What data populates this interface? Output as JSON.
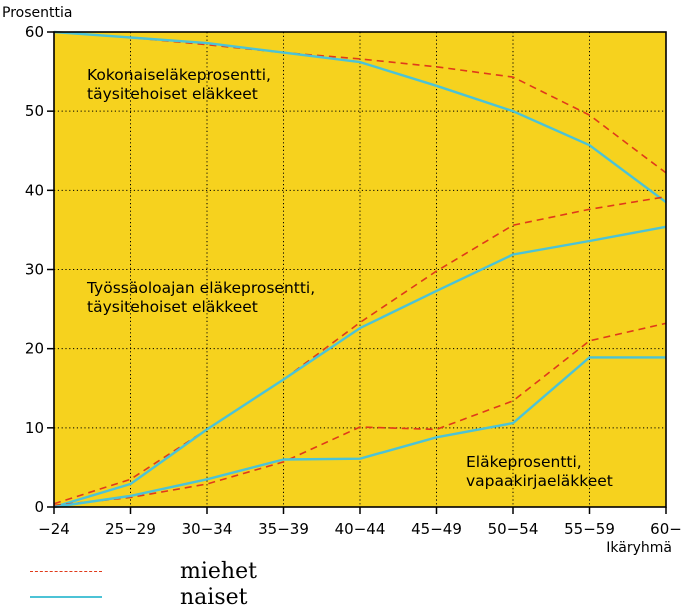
{
  "chart_data": {
    "type": "line",
    "ylabel": "Prosenttia",
    "xlabel": "Ikäryhmä",
    "ylim": [
      0,
      60
    ],
    "yticks": [
      "0",
      "10",
      "20",
      "30",
      "40",
      "50",
      "60"
    ],
    "categories": [
      "-24",
      "25-29",
      "30-34",
      "35-39",
      "40-44",
      "45-49",
      "50-54",
      "55-59",
      "60-"
    ],
    "x_tick_labels": [
      "−24",
      "25−29",
      "30−34",
      "35−39",
      "40−44",
      "45−49",
      "50−54",
      "55−59",
      "60−"
    ],
    "grid": true,
    "background": "#f6d21e",
    "groups": [
      {
        "label": [
          "Kokonaiseläkeprosentti,",
          "täysitehoiset eläkkeet"
        ],
        "series": [
          {
            "name": "miehet",
            "values": [
              60,
              59.3,
              58.4,
              57.4,
              56.6,
              55.6,
              54.3,
              49.5,
              42.2
            ]
          },
          {
            "name": "naiset",
            "values": [
              60,
              59.3,
              58.6,
              57.4,
              56.2,
              53.2,
              50,
              45.7,
              38.5
            ]
          }
        ]
      },
      {
        "label": [
          "Työssäoloajan eläkeprosentti,",
          "täysitehoiset eläkkeet"
        ],
        "series": [
          {
            "name": "miehet",
            "values": [
              0.4,
              3.5,
              9.8,
              16.1,
              23.3,
              29.8,
              35.6,
              37.6,
              39.2
            ]
          },
          {
            "name": "naiset",
            "values": [
              0,
              2.9,
              9.8,
              16.1,
              22.6,
              27.3,
              31.9,
              33.6,
              35.4
            ]
          }
        ]
      },
      {
        "label": [
          "Eläkeprosentti,",
          "vapaakirjaeläkkeet"
        ],
        "series": [
          {
            "name": "miehet",
            "values": [
              0.2,
              1.2,
              2.9,
              5.7,
              10.1,
              9.8,
              13.4,
              21,
              23.2
            ]
          },
          {
            "name": "naiset",
            "values": [
              0,
              1.4,
              3.5,
              6,
              6.1,
              8.8,
              10.6,
              18.9,
              18.9
            ]
          }
        ]
      }
    ],
    "legend": [
      {
        "name": "miehet",
        "color": "#e03a1a",
        "style": "dashed"
      },
      {
        "name": "naiset",
        "color": "#4cc3d6",
        "style": "solid"
      }
    ],
    "colors": {
      "miehet": "#e03a1a",
      "naiset": "#4cc3d6"
    }
  }
}
